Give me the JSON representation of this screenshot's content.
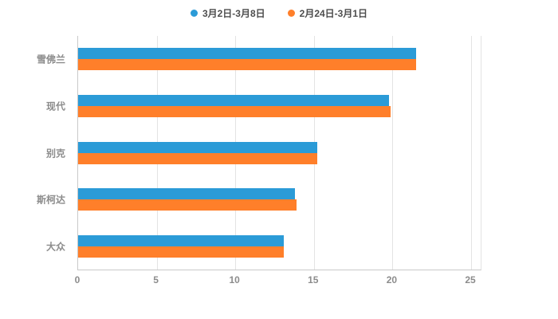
{
  "colors": {
    "series1": "#2b9bd7",
    "series2": "#ff7f2a",
    "axis_line": "#c9c9c9",
    "grid_line": "#e3e3e3",
    "label_text": "#8c8c8c",
    "legend_text": "#4d4d4d",
    "background": "#ffffff"
  },
  "chart_data": {
    "type": "bar",
    "orientation": "horizontal",
    "title": "",
    "xlabel": "",
    "ylabel": "",
    "categories": [
      "雪佛兰",
      "现代",
      "别克",
      "斯柯达",
      "大众"
    ],
    "series": [
      {
        "name": "3月2日-3月8日",
        "color": "#2b9bd7",
        "values": [
          21.5,
          19.8,
          15.2,
          13.8,
          13.1
        ]
      },
      {
        "name": "2月24日-3月1日",
        "color": "#ff7f2a",
        "values": [
          21.5,
          19.9,
          15.2,
          13.9,
          13.1
        ]
      }
    ],
    "xlim": [
      0,
      25
    ],
    "xticks": [
      0,
      5,
      10,
      15,
      20,
      25
    ],
    "grid": true,
    "legend_position": "top"
  }
}
